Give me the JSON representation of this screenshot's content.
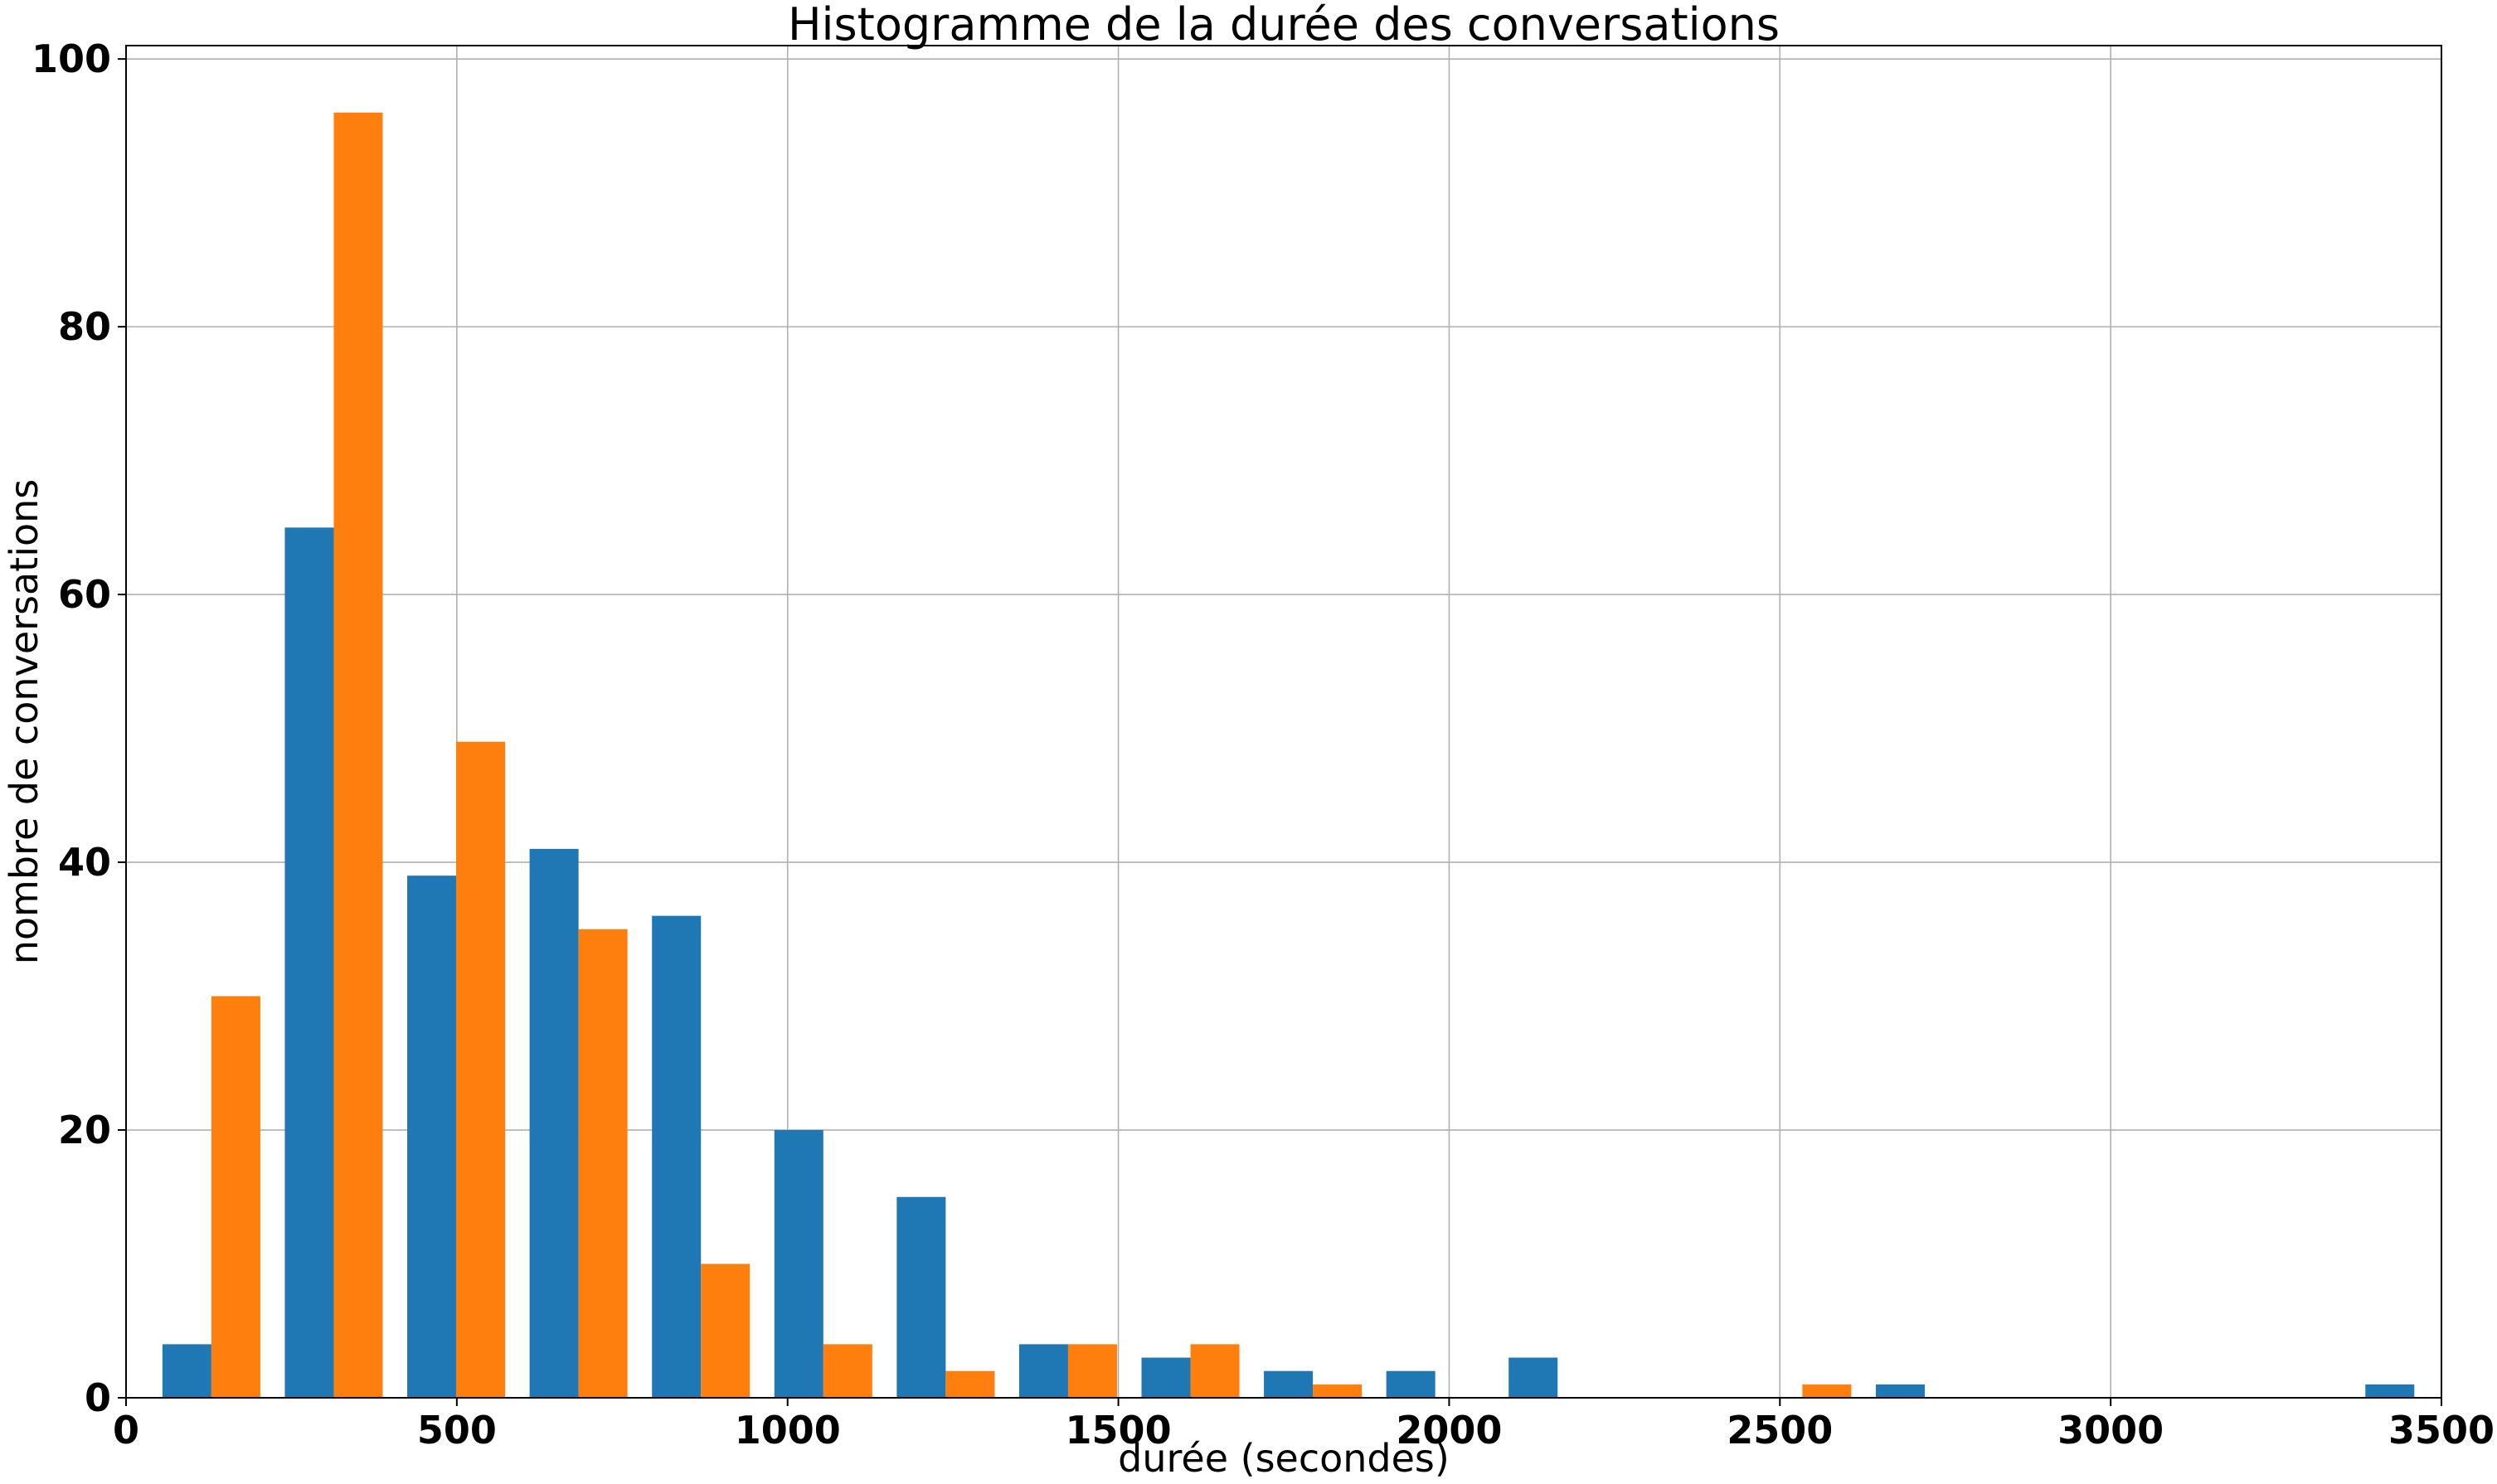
{
  "chart_data": {
    "type": "bar",
    "title": "Histogramme de la durée des conversations",
    "xlabel": "durée (secondes)",
    "ylabel": "nombre de conversations",
    "xlim": [
      0,
      3500
    ],
    "ylim": [
      0,
      101
    ],
    "xticks": [
      0,
      500,
      1000,
      1500,
      2000,
      2500,
      3000,
      3500
    ],
    "xtick_labels": [
      "0",
      "500",
      "1000",
      "1500",
      "2000",
      "2500",
      "3000",
      "3500"
    ],
    "yticks": [
      0,
      20,
      40,
      60,
      80,
      100
    ],
    "ytick_labels": [
      "0",
      "20",
      "40",
      "60",
      "80",
      "100"
    ],
    "grid": true,
    "bin_edges": [
      55,
      240,
      425,
      610,
      795,
      980,
      1165,
      1350,
      1535,
      1720,
      1905,
      2090,
      2275,
      2460,
      2645,
      2830,
      3015,
      3200,
      3385
    ],
    "series": [
      {
        "color": "#1f77b4",
        "values": [
          4,
          65,
          39,
          41,
          36,
          20,
          15,
          4,
          3,
          2,
          2,
          3,
          0,
          0,
          1,
          0,
          0,
          0,
          1
        ]
      },
      {
        "color": "#ff7f0e",
        "values": [
          30,
          96,
          49,
          35,
          10,
          4,
          2,
          4,
          4,
          1,
          0,
          0,
          0,
          1,
          0,
          0,
          0,
          0,
          0
        ]
      }
    ]
  }
}
